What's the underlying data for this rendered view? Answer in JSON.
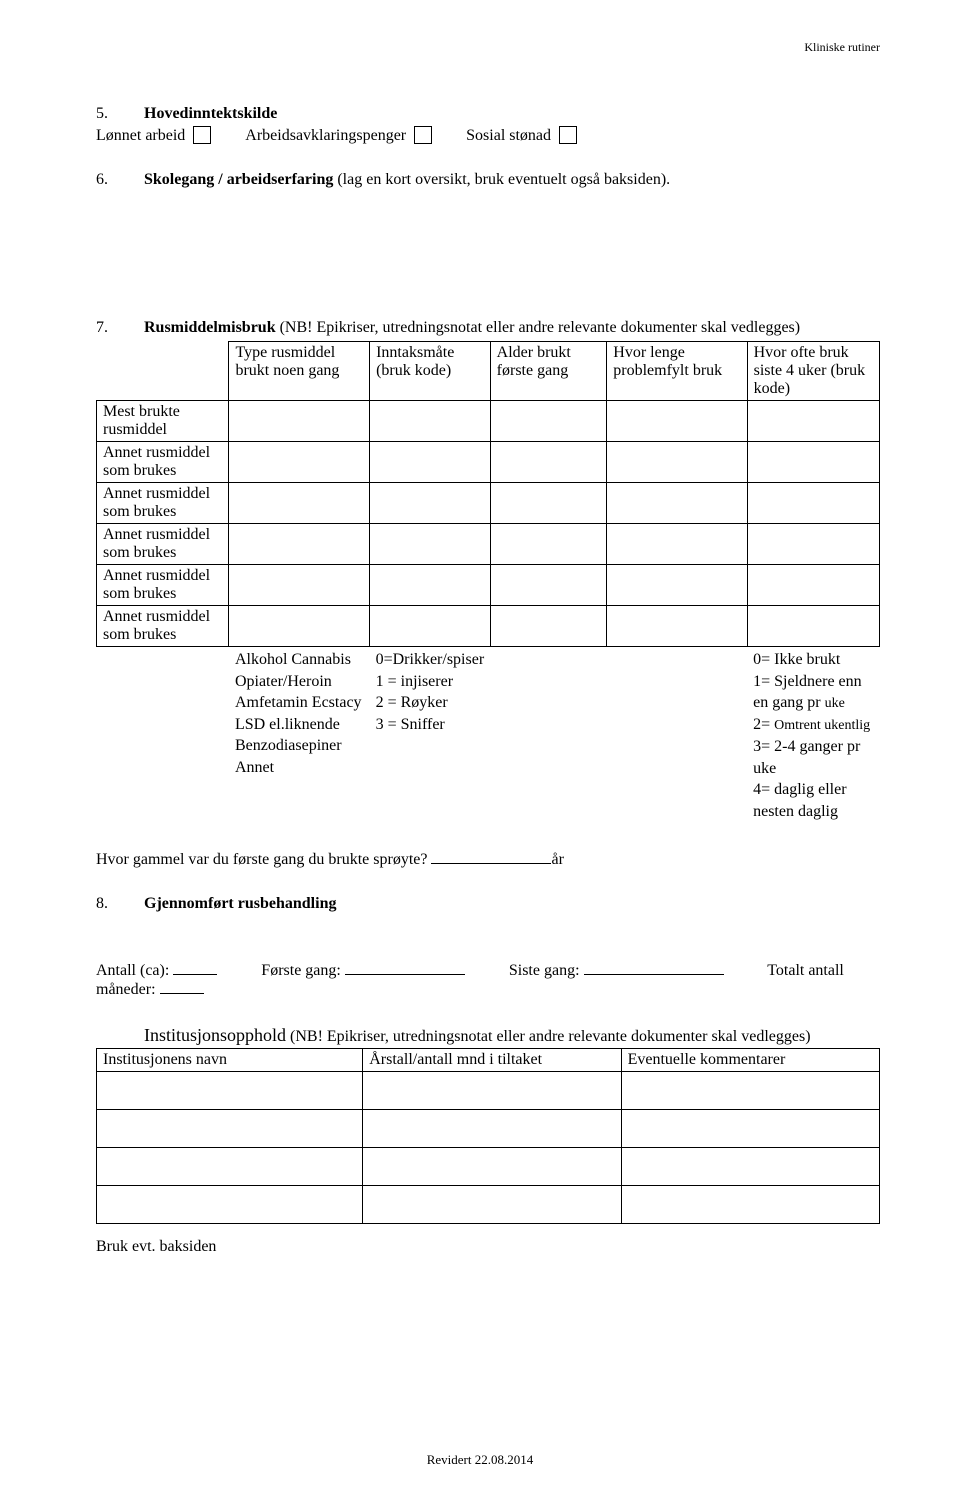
{
  "header_right": "Kliniske rutiner",
  "s5": {
    "num": "5.",
    "title": "Hovedinntektskilde",
    "opt1": "Lønnet arbeid",
    "opt2": "Arbeidsavklaringspenger",
    "opt3": "Sosial stønad"
  },
  "s6": {
    "num": "6.",
    "title": "Skolegang / arbeidserfaring",
    "paren": " (lag en kort oversikt,  bruk eventuelt også baksiden)."
  },
  "s7": {
    "num": "7.",
    "title": "Rusmiddelmisbruk",
    "paren": " (NB! Epikriser, utredningsnotat eller andre relevante dokumenter skal vedlegges)",
    "hdr": {
      "r0": "",
      "r1": "Type rusmiddel brukt noen gang",
      "r2": "Inntaksmåte (bruk kode)",
      "r3": "Alder brukt første gang",
      "r4": "Hvor lenge problemfylt bruk",
      "r5": "Hvor ofte bruk siste 4 uker (bruk kode)"
    },
    "rows": [
      "Mest brukte rusmiddel",
      "Annet rusmiddel som brukes",
      "Annet rusmiddel som brukes",
      "Annet rusmiddel som brukes",
      "Annet rusmiddel som brukes",
      "Annet rusmiddel som brukes"
    ],
    "foot": {
      "c1": "Alkohol Cannabis Opiater/Heroin Amfetamin Ecstacy\nLSD el.liknende Benzodiasepiner Annet",
      "c2": "0=Drikker/spiser\n1 = injiserer\n2 = Røyker\n3 = Sniffer",
      "c5a": "0= Ikke brukt\n1= Sjeldnere enn en gang pr ",
      "c5a_sm": "uke",
      "c5b": "2= ",
      "c5b_sm": "Omtrent ukentlig",
      "c5c": "3= 2-4 ganger pr uke\n4= daglig eller nesten daglig"
    },
    "sproyte_q": "Hvor gammel var du første gang du brukte sprøyte?",
    "sproyte_unit": "år"
  },
  "s8": {
    "num": "8.",
    "title": "Gjennomført rusbehandling",
    "f1": "Antall (ca):",
    "f2": "Første gang:",
    "f3": "Siste gang:",
    "f4": "Totalt antall måneder:",
    "inst_title": "Institusjonsopphold",
    "inst_paren": " (NB! Epikriser, utredningsnotat eller andre relevante dokumenter skal vedlegges)",
    "cols": [
      "Institusjonens navn",
      "Årstall/antall mnd i tiltaket",
      "Eventuelle kommentarer"
    ],
    "baksiden": "Bruk evt. baksiden"
  },
  "footer": "Revidert 22.08.2014"
}
